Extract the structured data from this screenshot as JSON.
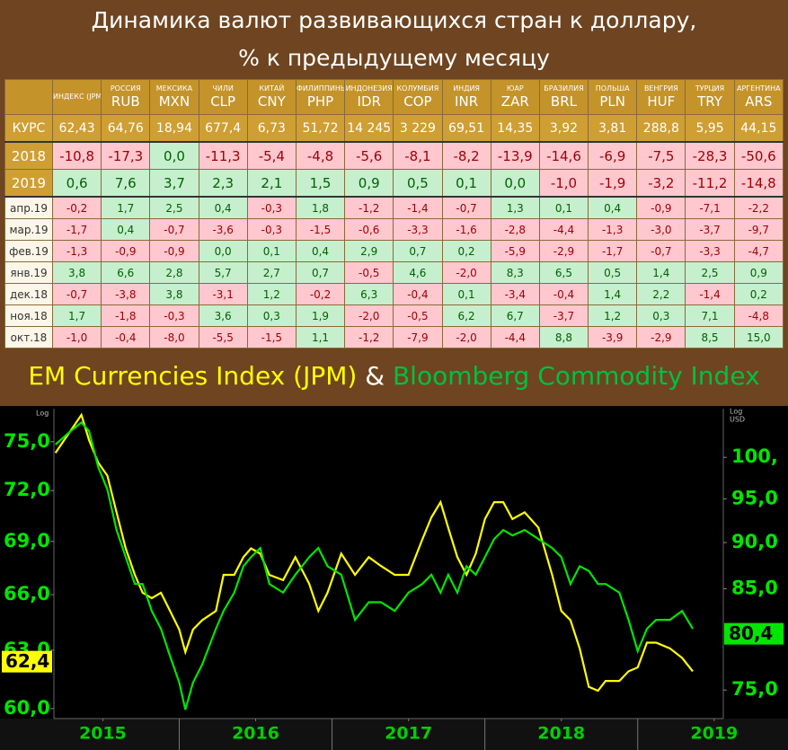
{
  "header": {
    "title_lines": [
      "Динамика валют развивающихся стран к доллару,",
      "% к предыдущему месяцу"
    ]
  },
  "table": {
    "columns": [
      {
        "name": "ИНДЕКС (JPM)"
      },
      {
        "name": "РОССИЯ",
        "code": "RUB"
      },
      {
        "name": "МЕКСИКА",
        "code": "MXN"
      },
      {
        "name": "ЧИЛИ",
        "code": "CLP"
      },
      {
        "name": "КИТАЙ",
        "code": "CNY"
      },
      {
        "name": "ФИЛИППИНЫ",
        "code": "PHP"
      },
      {
        "name": "ИНДОНЕЗИЯ",
        "code": "IDR"
      },
      {
        "name": "КОЛУМБИЯ",
        "code": "COP"
      },
      {
        "name": "ИНДИЯ",
        "code": "INR"
      },
      {
        "name": "ЮАР",
        "code": "ZAR"
      },
      {
        "name": "БРАЗИЛИЯ",
        "code": "BRL"
      },
      {
        "name": "ПОЛЬША",
        "code": "PLN"
      },
      {
        "name": "ВЕНГРИЯ",
        "code": "HUF"
      },
      {
        "name": "ТУРЦИЯ",
        "code": "TRY"
      },
      {
        "name": "АРГЕНТИНА",
        "code": "ARS"
      }
    ],
    "rate_row": {
      "label": "КУРС",
      "cells": [
        "62,43",
        "64,76",
        "18,94",
        "677,4",
        "6,73",
        "51,72",
        "14 245",
        "3 229",
        "69,51",
        "14,35",
        "3,92",
        "3,81",
        "288,8",
        "5,95",
        "44,15"
      ]
    },
    "year_rows": [
      {
        "label": "2018",
        "cells": [
          "-10,8",
          "-17,3",
          "0,0",
          "-11,3",
          "-5,4",
          "-4,8",
          "-5,6",
          "-8,1",
          "-8,2",
          "-13,9",
          "-14,6",
          "-6,9",
          "-7,5",
          "-28,3",
          "-50,6"
        ]
      },
      {
        "label": "2019",
        "cells": [
          "0,6",
          "7,6",
          "3,7",
          "2,3",
          "2,1",
          "1,5",
          "0,9",
          "0,5",
          "0,1",
          "0,0",
          "-1,0",
          "-1,9",
          "-3,2",
          "-11,2",
          "-14,8"
        ]
      }
    ],
    "month_rows": [
      {
        "label": "апр.19",
        "cells": [
          "-0,2",
          "1,7",
          "2,5",
          "0,4",
          "-0,3",
          "1,8",
          "-1,2",
          "-1,4",
          "-0,7",
          "1,3",
          "0,1",
          "0,4",
          "-0,9",
          "-7,1",
          "-2,2"
        ]
      },
      {
        "label": "мар.19",
        "cells": [
          "-1,7",
          "0,4",
          "-0,7",
          "-3,6",
          "-0,3",
          "-1,5",
          "-0,6",
          "-3,3",
          "-1,6",
          "-2,8",
          "-4,4",
          "-1,3",
          "-3,0",
          "-3,7",
          "-9,7"
        ]
      },
      {
        "label": "фев.19",
        "cells": [
          "-1,3",
          "-0,9",
          "-0,9",
          "0,0",
          "0,1",
          "0,4",
          "2,9",
          "0,7",
          "0,2",
          "-5,9",
          "-2,9",
          "-1,7",
          "-0,7",
          "-3,3",
          "-4,7"
        ]
      },
      {
        "label": "янв.19",
        "cells": [
          "3,8",
          "6,6",
          "2,8",
          "5,7",
          "2,7",
          "0,7",
          "-0,5",
          "4,6",
          "-2,0",
          "8,3",
          "6,5",
          "0,5",
          "1,4",
          "2,5",
          "0,9"
        ]
      },
      {
        "label": "дек.18",
        "cells": [
          "-0,7",
          "-3,8",
          "3,8",
          "-3,1",
          "1,2",
          "-0,2",
          "6,3",
          "-0,4",
          "0,1",
          "-3,4",
          "-0,4",
          "1,4",
          "2,2",
          "-1,4",
          "0,2"
        ]
      },
      {
        "label": "ноя.18",
        "cells": [
          "1,7",
          "-1,8",
          "-0,3",
          "3,6",
          "0,3",
          "1,9",
          "-2,0",
          "-0,5",
          "6,2",
          "6,7",
          "-3,7",
          "1,2",
          "0,3",
          "7,1",
          "-4,8"
        ]
      },
      {
        "label": "окт.18",
        "cells": [
          "-1,0",
          "-0,4",
          "-8,0",
          "-5,5",
          "-1,5",
          "1,1",
          "-1,2",
          "-7,9",
          "-2,0",
          "-4,4",
          "8,8",
          "-3,9",
          "-2,9",
          "8,5",
          "15,0"
        ]
      }
    ]
  },
  "chart_data": {
    "type": "line",
    "legend_joiner": "&",
    "y_axis_label": "Log",
    "y2_axis_label": [
      "Log",
      "USD"
    ],
    "x": [
      2015.19,
      2015.29,
      2015.36,
      2015.41,
      2015.47,
      2015.53,
      2015.59,
      2015.65,
      2015.71,
      2015.76,
      2015.82,
      2015.88,
      2015.94,
      2016.0,
      2016.04,
      2016.09,
      2016.15,
      2016.24,
      2016.29,
      2016.36,
      2016.42,
      2016.47,
      2016.53,
      2016.59,
      2016.68,
      2016.76,
      2016.85,
      2016.91,
      2016.97,
      2017.06,
      2017.15,
      2017.24,
      2017.32,
      2017.41,
      2017.5,
      2017.59,
      2017.65,
      2017.71,
      2017.76,
      2017.82,
      2017.88,
      2017.94,
      2018.0,
      2018.06,
      2018.12,
      2018.18,
      2018.26,
      2018.35,
      2018.44,
      2018.5,
      2018.56,
      2018.62,
      2018.68,
      2018.74,
      2018.79,
      2018.88,
      2018.94,
      2019.0,
      2019.06,
      2019.12,
      2019.21,
      2019.29,
      2019.36
    ],
    "series": [
      {
        "name": "EM Currencies Index (JPM)",
        "color": "#ffff00",
        "axis": "y",
        "last_value": {
          "value": 62.4,
          "label": "62,4"
        },
        "values": [
          74.3,
          75.7,
          76.7,
          75.1,
          73.7,
          72.9,
          70.7,
          68.6,
          67.1,
          66.1,
          65.8,
          66.1,
          65.1,
          64.1,
          62.9,
          64.1,
          64.6,
          65.1,
          67.1,
          67.1,
          68.1,
          68.6,
          68.3,
          67.1,
          66.8,
          68.1,
          66.6,
          65.1,
          66.1,
          68.3,
          67.1,
          68.1,
          67.6,
          67.1,
          67.1,
          69.1,
          70.4,
          71.3,
          69.8,
          68.1,
          67.1,
          68.3,
          70.3,
          71.3,
          71.3,
          70.3,
          70.7,
          69.8,
          67.1,
          65.1,
          64.6,
          63.1,
          61.1,
          60.9,
          61.4,
          61.4,
          61.9,
          62.1,
          63.4,
          63.4,
          63.1,
          62.6,
          61.9
        ]
      },
      {
        "name": "Bloomberg Commodity Index",
        "color": "#00e600",
        "axis": "y2",
        "last_value": {
          "value": 80.4,
          "label": "80,4"
        },
        "values": [
          101.6,
          103.3,
          104.4,
          103.3,
          98.8,
          96.1,
          91.4,
          88.4,
          85.5,
          85.5,
          82.7,
          80.9,
          78.2,
          75.7,
          73.2,
          75.7,
          77.4,
          80.9,
          82.7,
          84.6,
          87.4,
          88.4,
          89.4,
          85.5,
          84.6,
          86.5,
          88.4,
          89.4,
          87.4,
          86.5,
          81.8,
          83.6,
          83.6,
          82.7,
          84.6,
          85.5,
          86.5,
          84.6,
          86.5,
          84.6,
          87.4,
          86.5,
          88.4,
          90.4,
          91.4,
          90.8,
          91.4,
          90.4,
          89.4,
          88.4,
          85.5,
          87.4,
          86.9,
          85.5,
          85.5,
          84.6,
          81.8,
          78.7,
          80.9,
          81.8,
          81.8,
          82.7,
          80.9
        ]
      }
    ],
    "xlim": [
      2015.18,
      2019.56
    ],
    "xticks": [
      {
        "value": 2015.5,
        "label": "2015"
      },
      {
        "value": 2016.5,
        "label": "2016"
      },
      {
        "value": 2017.5,
        "label": "2017"
      },
      {
        "value": 2018.5,
        "label": "2018"
      },
      {
        "value": 2019.5,
        "label": "2019"
      }
    ],
    "ylim": [
      59.5,
      77.1
    ],
    "ylog": true,
    "yticks": [
      {
        "value": 60,
        "label": "60,0"
      },
      {
        "value": 63,
        "label": "63,0"
      },
      {
        "value": 66,
        "label": "66,0"
      },
      {
        "value": 69,
        "label": "69,0"
      },
      {
        "value": 72,
        "label": "72,0"
      },
      {
        "value": 75,
        "label": "75,0"
      }
    ],
    "y2lim": [
      72.4,
      106.2
    ],
    "y2log": true,
    "y2ticks": [
      {
        "value": 75,
        "label": "75,0"
      },
      {
        "value": 85,
        "label": "85,0"
      },
      {
        "value": 90,
        "label": "90,0"
      },
      {
        "value": 95,
        "label": "95,0"
      },
      {
        "value": 100,
        "label": "100,"
      }
    ],
    "grid": false
  }
}
